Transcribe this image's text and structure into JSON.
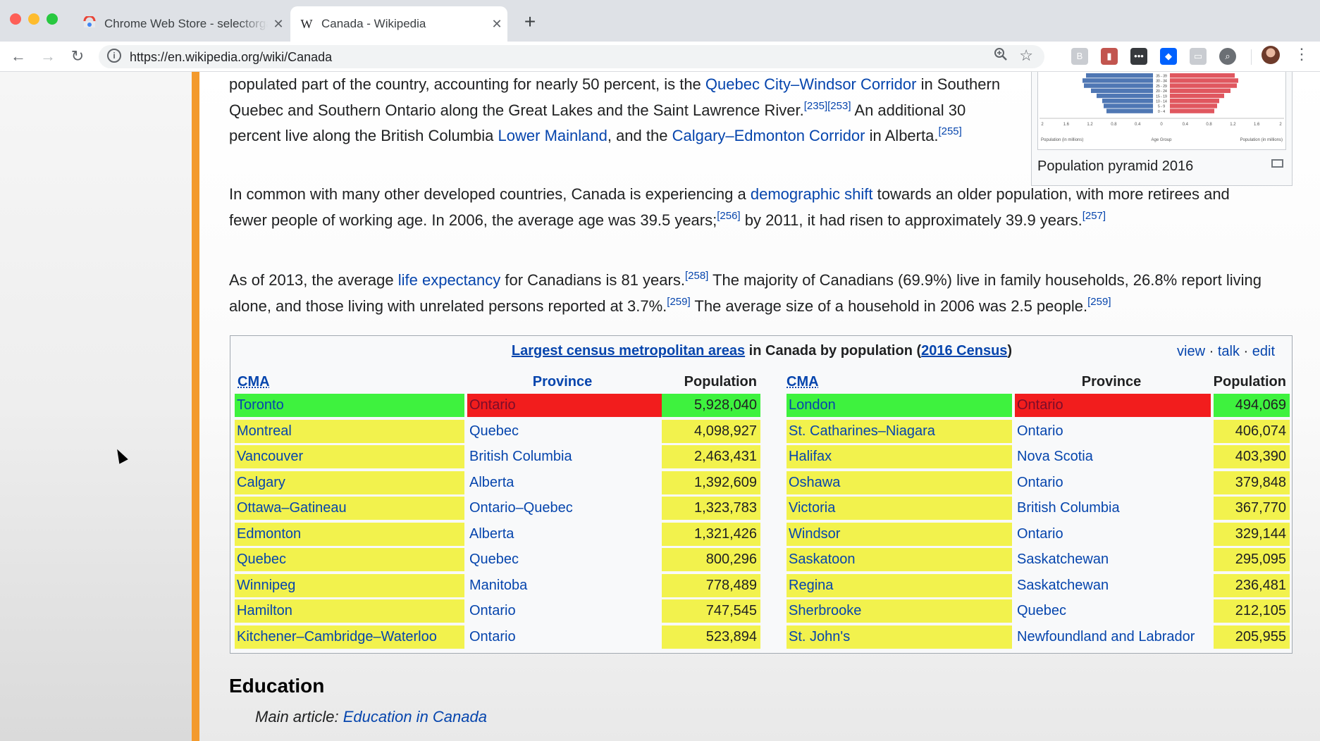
{
  "browser": {
    "tabs": [
      {
        "title": "Chrome Web Store - selectorgadget",
        "favicon": "chrome-web-store-icon",
        "active": false
      },
      {
        "title": "Canada - Wikipedia",
        "favicon": "wikipedia-w-icon",
        "favicon_glyph": "W",
        "active": true
      }
    ],
    "url": "https://en.wikipedia.org/wiki/Canada"
  },
  "article": {
    "p1": {
      "t1": "populated part of the country, accounting for nearly 50 percent, is the ",
      "l1": "Quebec City–Windsor Corridor",
      "t2": " in Southern Quebec and Southern Ontario along the Great Lakes and the Saint Lawrence River.",
      "r1": "[235]",
      "r2": "[253]",
      "t3": " An additional 30 percent live along the British Columbia ",
      "l2": "Lower Mainland",
      "t4": ", and the ",
      "l3": "Calgary–Edmonton Corridor",
      "t5": " in Alberta.",
      "r3": "[255]"
    },
    "p2": {
      "t1": "In common with many other developed countries, Canada is experiencing a ",
      "l1": "demographic shift",
      "t2": " towards an older population, with more retirees and fewer people of working age. In 2006, the average age was 39.5 years;",
      "r1": "[256]",
      "t3": " by 2011, it had risen to approximately 39.9 years.",
      "r2": "[257]"
    },
    "p3": {
      "t1": "As of 2013, the average ",
      "l1": "life expectancy",
      "t2": " for Canadians is 81 years.",
      "r1": "[258]",
      "t3": " The majority of Canadians (69.9%) live in family households, 26.8% report living alone, and those living with unrelated persons reported at 3.7%.",
      "r2": "[259]",
      "t4": " The average size of a household in 2006 was 2.5 people.",
      "r3": "[259]"
    },
    "thumbnail": {
      "caption": "Population pyramid 2016",
      "age_groups": [
        "35 - 39",
        "30 - 34",
        "25 - 29",
        "20 - 24",
        "15 - 19",
        "10 - 14",
        "5 - 9",
        "0 - 4"
      ],
      "axis_ticks": [
        "2",
        "1.6",
        "1.2",
        "0.8",
        "0.4",
        "0",
        "0.4",
        "0.8",
        "1.2",
        "1.6",
        "2"
      ],
      "left_label": "Population (in millions)",
      "center_label": "Age Group",
      "right_label": "Population (in millions)",
      "colors": {
        "male": "#4f77b4",
        "female": "#e0575f"
      }
    },
    "navbox": {
      "title_link": "Largest census metropolitan areas",
      "title_mid": " in Canada by population (",
      "title_census": "2016 Census",
      "title_end": ")",
      "vte": {
        "view": "view",
        "talk": "talk",
        "edit": "edit"
      },
      "headers": {
        "cma": "CMA",
        "province": "Province",
        "population": "Population"
      },
      "left": [
        {
          "cma": "Toronto",
          "province": "Ontario",
          "population": "5,928,040"
        },
        {
          "cma": "Montreal",
          "province": "Quebec",
          "population": "4,098,927"
        },
        {
          "cma": "Vancouver",
          "province": "British Columbia",
          "population": "2,463,431"
        },
        {
          "cma": "Calgary",
          "province": "Alberta",
          "population": "1,392,609"
        },
        {
          "cma": "Ottawa–Gatineau",
          "province": "Ontario–Quebec",
          "population": "1,323,783"
        },
        {
          "cma": "Edmonton",
          "province": "Alberta",
          "population": "1,321,426"
        },
        {
          "cma": "Quebec",
          "province": "Quebec",
          "population": "800,296"
        },
        {
          "cma": "Winnipeg",
          "province": "Manitoba",
          "population": "778,489"
        },
        {
          "cma": "Hamilton",
          "province": "Ontario",
          "population": "747,545"
        },
        {
          "cma": "Kitchener–Cambridge–Waterloo",
          "province": "Ontario",
          "population": "523,894"
        }
      ],
      "right": [
        {
          "cma": "London",
          "province": "Ontario",
          "population": "494,069"
        },
        {
          "cma": "St. Catharines–Niagara",
          "province": "Ontario",
          "population": "406,074"
        },
        {
          "cma": "Halifax",
          "province": "Nova Scotia",
          "population": "403,390"
        },
        {
          "cma": "Oshawa",
          "province": "Ontario",
          "population": "379,848"
        },
        {
          "cma": "Victoria",
          "province": "British Columbia",
          "population": "367,770"
        },
        {
          "cma": "Windsor",
          "province": "Ontario",
          "population": "329,144"
        },
        {
          "cma": "Saskatoon",
          "province": "Saskatchewan",
          "population": "295,095"
        },
        {
          "cma": "Regina",
          "province": "Saskatchewan",
          "population": "236,481"
        },
        {
          "cma": "Sherbrooke",
          "province": "Quebec",
          "population": "212,105"
        },
        {
          "cma": "St. John's",
          "province": "Newfoundland and Labrador",
          "population": "205,955"
        }
      ],
      "highlight_colors": {
        "selected_cma": "#3ef23e",
        "rejected": "#f21d1d",
        "matched": "#f2f24d"
      }
    },
    "section_heading": "Education",
    "hatnote_prefix": "Main article: ",
    "hatnote_link": "Education in Canada"
  }
}
